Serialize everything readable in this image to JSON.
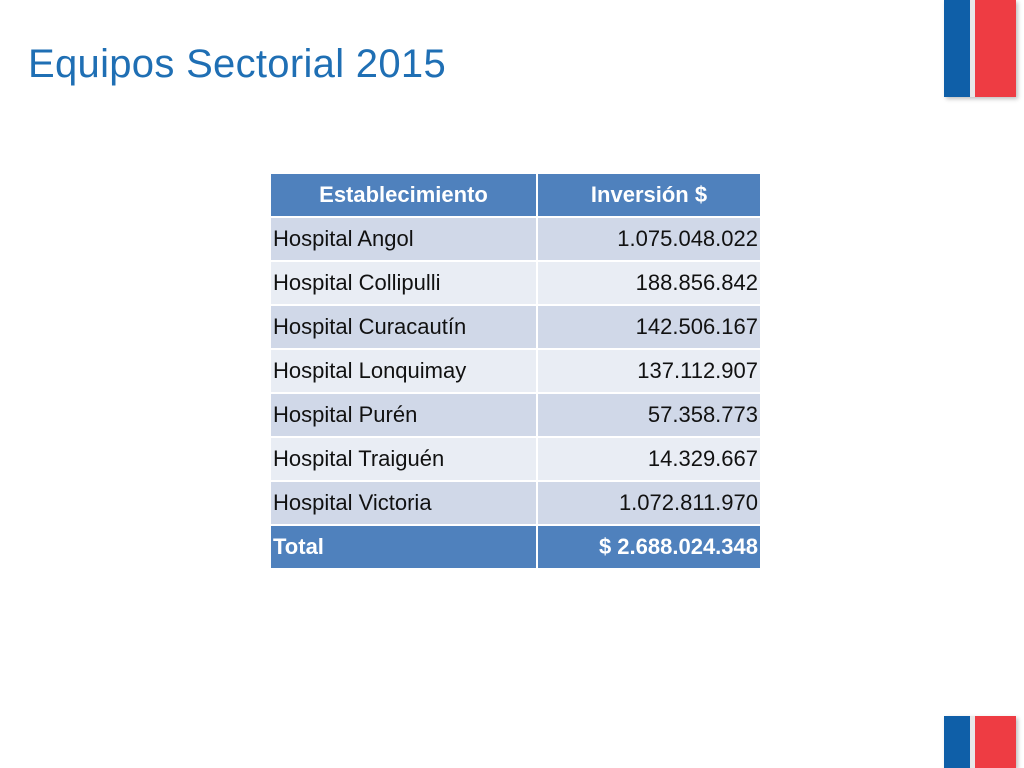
{
  "slide": {
    "title": "Equipos Sectorial 2015"
  },
  "colors": {
    "title": "#1f6fb4",
    "header_bg": "#4f81bd",
    "row_odd": "#d0d8e8",
    "row_even": "#e9edf4",
    "flag_blue": "#0f5fa8",
    "flag_red": "#ee3c43"
  },
  "table": {
    "headers": [
      "Establecimiento",
      "Inversión $"
    ],
    "rows": [
      {
        "name": "Hospital Angol",
        "value": "1.075.048.022"
      },
      {
        "name": "Hospital Collipulli",
        "value": "188.856.842"
      },
      {
        "name": "Hospital Curacautín",
        "value": "142.506.167"
      },
      {
        "name": "Hospital Lonquimay",
        "value": "137.112.907"
      },
      {
        "name": "Hospital Purén",
        "value": "57.358.773"
      },
      {
        "name": "Hospital Traiguén",
        "value": "14.329.667"
      },
      {
        "name": "Hospital Victoria",
        "value": "1.072.811.970"
      }
    ],
    "total": {
      "label": "Total",
      "value": "$ 2.688.024.348"
    }
  }
}
